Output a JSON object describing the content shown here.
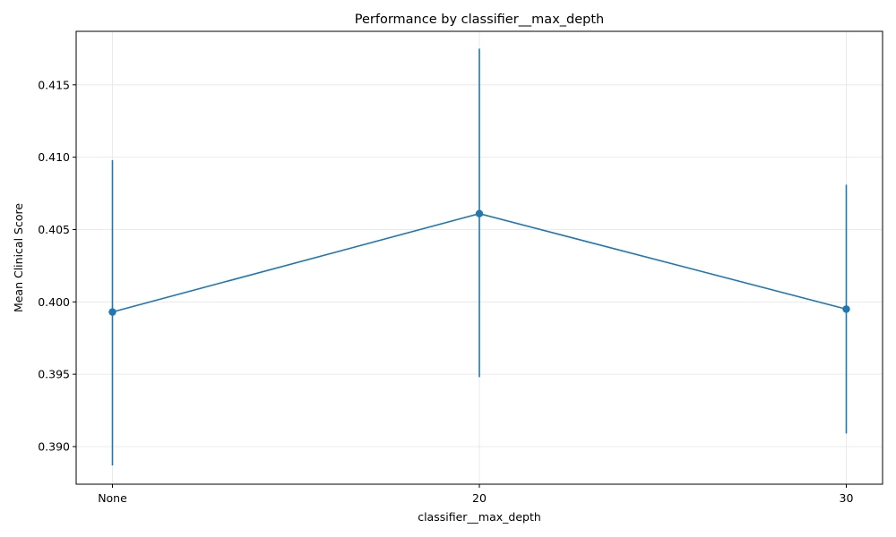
{
  "chart_data": {
    "type": "line",
    "title": "Performance by classifier__max_depth",
    "xlabel": "classifier__max_depth",
    "ylabel": "Mean Clinical Score",
    "categories": [
      "None",
      "20",
      "30"
    ],
    "x": [
      0,
      20,
      30
    ],
    "series": [
      {
        "values": [
          0.3993,
          0.4061,
          0.3995
        ],
        "error_low": [
          0.3887,
          0.3948,
          0.3909
        ],
        "error_high": [
          0.4098,
          0.4175,
          0.4081
        ],
        "color": "#1f77b4",
        "marker": "circle"
      }
    ],
    "ylim": [
      0.3874,
      0.4187
    ],
    "yticks": [
      0.39,
      0.395,
      0.4,
      0.405,
      0.41,
      0.415
    ],
    "ytick_labels": [
      "0.390",
      "0.395",
      "0.400",
      "0.405",
      "0.410",
      "0.415"
    ],
    "grid": true
  }
}
